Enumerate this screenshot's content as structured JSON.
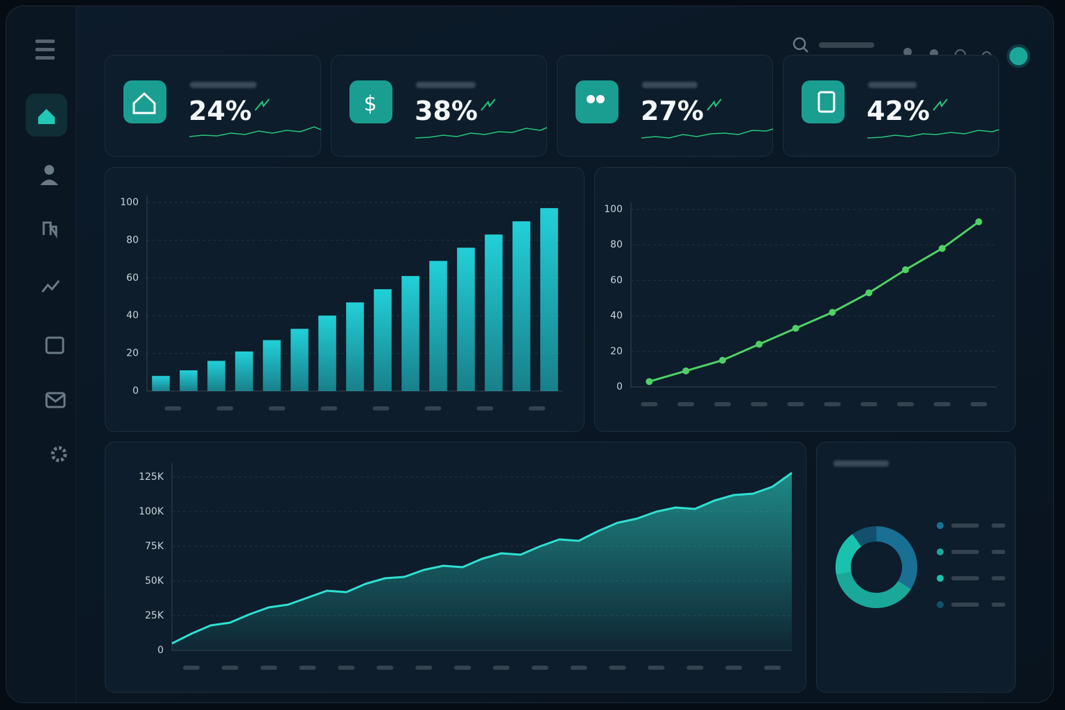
{
  "kpis": [
    {
      "value": "24%"
    },
    {
      "value": "38%"
    },
    {
      "value": "27%"
    },
    {
      "value": "42%"
    }
  ],
  "chart_data": [
    {
      "type": "bar",
      "categories": [
        null,
        null,
        null,
        null,
        null,
        null,
        null,
        null,
        null,
        null,
        null,
        null,
        null,
        null,
        null
      ],
      "values": [
        8,
        11,
        16,
        21,
        27,
        33,
        40,
        47,
        54,
        61,
        69,
        76,
        83,
        90,
        97
      ],
      "color": "#22d0d8",
      "ylim": [
        0,
        100
      ],
      "yticks": [
        0,
        20,
        40,
        60,
        80,
        100
      ],
      "grid": true
    },
    {
      "type": "line",
      "categories": [
        null,
        null,
        null,
        null,
        null,
        null,
        null,
        null,
        null,
        null
      ],
      "values": [
        3,
        9,
        15,
        24,
        33,
        42,
        53,
        66,
        78,
        93
      ],
      "color": "#4fd166",
      "ylim": [
        0,
        100
      ],
      "yticks": [
        0,
        20,
        40,
        60,
        80,
        100
      ],
      "grid": true
    },
    {
      "type": "area",
      "values": [
        5000,
        12000,
        18000,
        20000,
        26000,
        31000,
        33000,
        38000,
        43000,
        42000,
        48000,
        52000,
        53000,
        58000,
        61000,
        60000,
        66000,
        70000,
        69000,
        75000,
        80000,
        79000,
        86000,
        92000,
        95000,
        100000,
        103000,
        102000,
        108000,
        112000,
        113000,
        118000,
        128000
      ],
      "color": "#2ee0d2",
      "ylim": [
        0,
        130000
      ],
      "yticks": [
        0,
        {
          "value": 25000,
          "label": "25K"
        },
        {
          "value": 50000,
          "label": "50K"
        },
        {
          "value": 75000,
          "label": "75K"
        },
        {
          "value": 100000,
          "label": "100K"
        },
        {
          "value": 125000,
          "label": "125K"
        }
      ],
      "grid": true
    },
    {
      "type": "donut",
      "values": [
        34,
        38,
        18,
        10
      ],
      "colors": [
        "#1a6f94",
        "#1aa89a",
        "#19c2ae",
        "#12506e"
      ]
    }
  ]
}
